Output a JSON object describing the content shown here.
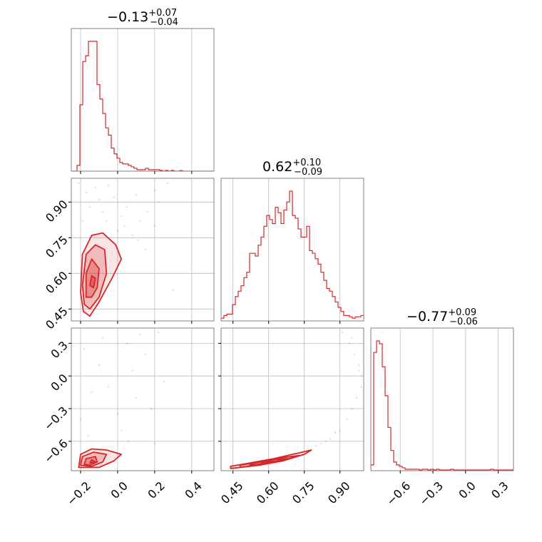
{
  "colors": {
    "accent": "#d62728",
    "grid": "#bcbcbc",
    "frame": "#808080"
  },
  "chart_data": {
    "type": "corner",
    "parameters": [
      {
        "title": {
          "median": "−0.13",
          "plus": "+0.07",
          "minus": "−0.04"
        },
        "range": [
          -0.25,
          0.52
        ],
        "ticks": [
          -0.2,
          0.0,
          0.2,
          0.4
        ],
        "tick_labels": [
          "−0.2",
          "0.0",
          "0.2",
          "0.4"
        ],
        "histogram": {
          "bin_start": -0.25,
          "bin_width": 0.0154,
          "counts": [
            0,
            0,
            0.04,
            0.46,
            0.76,
            0.8,
            0.9,
            0.9,
            0.9,
            0.6,
            0.5,
            0.4,
            0.3,
            0.25,
            0.16,
            0.12,
            0.09,
            0.06,
            0.05,
            0.05,
            0.04,
            0.03,
            0.02,
            0.01,
            0.01,
            0.01,
            0.02,
            0.01,
            0.01,
            0.01,
            0.01,
            0.005,
            0,
            0.005,
            0,
            0.005,
            0,
            0,
            0.004,
            0,
            0,
            0,
            0,
            0,
            0,
            0,
            0,
            0,
            0,
            0
          ]
        }
      },
      {
        "title": {
          "median": "0.62",
          "plus": "+0.10",
          "minus": "−0.09"
        },
        "range": [
          0.4,
          1.0
        ],
        "ticks": [
          0.45,
          0.6,
          0.75,
          0.9
        ],
        "tick_labels": [
          "0.45",
          "0.60",
          "0.75",
          "0.90"
        ],
        "histogram": {
          "bin_start": 0.4,
          "bin_width": 0.012,
          "counts": [
            0.02,
            0.04,
            0.05,
            0.05,
            0.12,
            0.18,
            0.22,
            0.26,
            0.32,
            0.36,
            0.5,
            0.5,
            0.48,
            0.56,
            0.62,
            0.7,
            0.78,
            0.75,
            0.72,
            0.84,
            0.8,
            0.72,
            0.82,
            0.88,
            0.96,
            0.78,
            0.76,
            0.68,
            0.62,
            0.62,
            0.7,
            0.52,
            0.5,
            0.46,
            0.42,
            0.36,
            0.3,
            0.24,
            0.22,
            0.18,
            0.14,
            0.1,
            0.07,
            0.04,
            0.04,
            0.03,
            0.02,
            0.03,
            0.03,
            0.04
          ]
        }
      },
      {
        "title": {
          "median": "−0.77",
          "plus": "+0.09",
          "minus": "−0.06"
        },
        "range": [
          -0.87,
          0.44
        ],
        "ticks": [
          -0.6,
          -0.3,
          0.0,
          0.3
        ],
        "tick_labels": [
          "−0.6",
          "−0.3",
          "0.0",
          "0.3"
        ],
        "histogram": {
          "bin_start": -0.87,
          "bin_width": 0.0262,
          "counts": [
            0.04,
            0.82,
            0.9,
            0.88,
            0.72,
            0.52,
            0.3,
            0.14,
            0.06,
            0.04,
            0.03,
            0.02,
            0.01,
            0.01,
            0.01,
            0.01,
            0.01,
            0.005,
            0.01,
            0.01,
            0.005,
            0.01,
            0.005,
            0.01,
            0.005,
            0.005,
            0.005,
            0.005,
            0.01,
            0.005,
            0.005,
            0.005,
            0.005,
            0.005,
            0.005,
            0.005,
            0.005,
            0.005,
            0.005,
            0.005,
            0.005,
            0.005,
            0.01,
            0.005,
            0.005,
            0.005,
            0.005,
            0.005,
            0.005,
            0.005
          ]
        }
      }
    ],
    "pairs": [
      {
        "x_param": 0,
        "y_param": 1,
        "levels": [
          [
            [
              -0.185,
              0.44
            ],
            [
              -0.2,
              0.52
            ],
            [
              -0.19,
              0.68
            ],
            [
              -0.14,
              0.76
            ],
            [
              -0.08,
              0.77
            ],
            [
              -0.01,
              0.72
            ],
            [
              0.02,
              0.66
            ],
            [
              -0.03,
              0.58
            ],
            [
              -0.1,
              0.48
            ],
            [
              -0.15,
              0.42
            ]
          ],
          [
            [
              -0.18,
              0.47
            ],
            [
              -0.19,
              0.55
            ],
            [
              -0.17,
              0.68
            ],
            [
              -0.12,
              0.72
            ],
            [
              -0.07,
              0.7
            ],
            [
              -0.06,
              0.6
            ],
            [
              -0.1,
              0.5
            ],
            [
              -0.15,
              0.45
            ]
          ],
          [
            [
              -0.17,
              0.5
            ],
            [
              -0.17,
              0.6
            ],
            [
              -0.14,
              0.66
            ],
            [
              -0.1,
              0.62
            ],
            [
              -0.11,
              0.54
            ],
            [
              -0.14,
              0.5
            ]
          ],
          [
            [
              -0.15,
              0.55
            ],
            [
              -0.14,
              0.59
            ],
            [
              -0.12,
              0.58
            ],
            [
              -0.13,
              0.54
            ]
          ]
        ],
        "outliers": [
          [
            -0.21,
            0.98
          ],
          [
            -0.05,
            0.97
          ],
          [
            0.1,
            0.93
          ],
          [
            0.2,
            0.95
          ],
          [
            -0.17,
            0.94
          ],
          [
            -0.1,
            0.91
          ],
          [
            0.05,
            0.88
          ],
          [
            0.12,
            0.82
          ],
          [
            -0.08,
            0.86
          ],
          [
            0.22,
            0.9
          ],
          [
            0.3,
            0.53
          ],
          [
            0.15,
            0.7
          ],
          [
            -0.19,
            0.82
          ],
          [
            0.02,
            0.84
          ],
          [
            -0.12,
            0.96
          ],
          [
            0.08,
            0.76
          ],
          [
            0.16,
            0.86
          ],
          [
            -0.02,
            0.92
          ],
          [
            0.27,
            0.98
          ],
          [
            0.04,
            0.8
          ],
          [
            -0.15,
            0.88
          ],
          [
            0.0,
            0.78
          ],
          [
            0.11,
            0.74
          ],
          [
            0.2,
            0.8
          ],
          [
            -0.06,
            0.82
          ]
        ]
      },
      {
        "x_param": 0,
        "y_param": 2,
        "levels": [
          [
            [
              -0.21,
              -0.84
            ],
            [
              -0.2,
              -0.72
            ],
            [
              -0.14,
              -0.67
            ],
            [
              -0.06,
              -0.68
            ],
            [
              0.02,
              -0.72
            ],
            [
              -0.02,
              -0.78
            ],
            [
              -0.1,
              -0.84
            ]
          ],
          [
            [
              -0.2,
              -0.82
            ],
            [
              -0.19,
              -0.74
            ],
            [
              -0.13,
              -0.7
            ],
            [
              -0.06,
              -0.72
            ],
            [
              -0.08,
              -0.79
            ],
            [
              -0.14,
              -0.83
            ]
          ],
          [
            [
              -0.18,
              -0.81
            ],
            [
              -0.17,
              -0.76
            ],
            [
              -0.12,
              -0.74
            ],
            [
              -0.11,
              -0.79
            ],
            [
              -0.15,
              -0.82
            ]
          ],
          [
            [
              -0.15,
              -0.8
            ],
            [
              -0.14,
              -0.77
            ],
            [
              -0.12,
              -0.79
            ]
          ]
        ],
        "outliers": [
          [
            -0.18,
            0.25
          ],
          [
            -0.1,
            0.1
          ],
          [
            0.05,
            0.3
          ],
          [
            0.15,
            0.2
          ],
          [
            0.22,
            0.4
          ],
          [
            -0.05,
            -0.1
          ],
          [
            0.1,
            -0.2
          ],
          [
            0.28,
            0.45
          ],
          [
            -0.2,
            -0.4
          ],
          [
            0.0,
            -0.35
          ],
          [
            0.18,
            -0.3
          ],
          [
            0.08,
            0.05
          ],
          [
            -0.14,
            -0.15
          ],
          [
            0.25,
            -0.05
          ],
          [
            0.12,
            0.38
          ],
          [
            -0.08,
            0.35
          ],
          [
            0.02,
            -0.5
          ],
          [
            -0.16,
            -0.55
          ],
          [
            0.06,
            -0.6
          ],
          [
            0.2,
            -0.62
          ]
        ]
      },
      {
        "x_param": 1,
        "y_param": 2,
        "levels": [
          [
            [
              0.44,
              -0.85
            ],
            [
              0.56,
              -0.82
            ],
            [
              0.66,
              -0.78
            ],
            [
              0.75,
              -0.72
            ],
            [
              0.78,
              -0.68
            ],
            [
              0.72,
              -0.71
            ],
            [
              0.62,
              -0.76
            ],
            [
              0.52,
              -0.8
            ],
            [
              0.44,
              -0.83
            ]
          ],
          [
            [
              0.48,
              -0.84
            ],
            [
              0.58,
              -0.81
            ],
            [
              0.67,
              -0.77
            ],
            [
              0.73,
              -0.73
            ],
            [
              0.66,
              -0.75
            ],
            [
              0.56,
              -0.79
            ],
            [
              0.48,
              -0.82
            ]
          ],
          [
            [
              0.52,
              -0.82
            ],
            [
              0.6,
              -0.8
            ],
            [
              0.68,
              -0.76
            ],
            [
              0.62,
              -0.77
            ],
            [
              0.54,
              -0.8
            ]
          ],
          [
            [
              0.57,
              -0.8
            ],
            [
              0.63,
              -0.785
            ],
            [
              0.6,
              -0.785
            ]
          ]
        ],
        "outliers": [
          [
            0.82,
            -0.62
          ],
          [
            0.86,
            -0.58
          ],
          [
            0.9,
            -0.5
          ],
          [
            0.93,
            -0.4
          ],
          [
            0.95,
            -0.3
          ],
          [
            0.97,
            -0.2
          ],
          [
            0.99,
            0.0
          ],
          [
            0.98,
            0.1
          ],
          [
            0.96,
            0.2
          ],
          [
            0.94,
            0.3
          ],
          [
            0.92,
            0.45
          ],
          [
            0.88,
            -0.52
          ],
          [
            0.84,
            -0.6
          ],
          [
            0.99,
            -0.1
          ],
          [
            0.98,
            0.05
          ],
          [
            0.95,
            0.35
          ],
          [
            0.91,
            0.4
          ],
          [
            0.8,
            -0.64
          ]
        ]
      }
    ]
  }
}
